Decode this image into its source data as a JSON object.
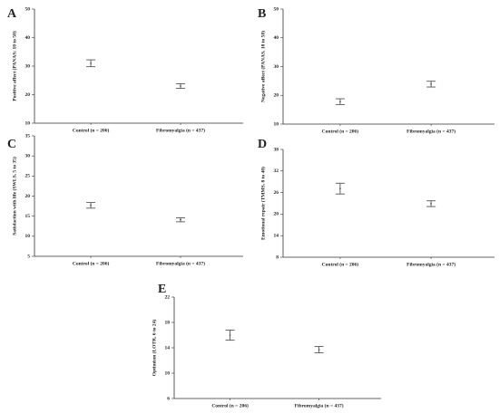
{
  "chart_data": [
    {
      "type": "errorbar",
      "label": "A",
      "ylabel": "Positive affect (PANAS; 10 to 50)",
      "categories": [
        "Control (n = 206)",
        "Fibromyalgia (n = 437)"
      ],
      "values": [
        31,
        23
      ],
      "errors": [
        1.2,
        0.8
      ],
      "ylim": [
        10,
        50
      ],
      "yticks": [
        10,
        20,
        30,
        40,
        50
      ],
      "color": "#555555"
    },
    {
      "type": "errorbar",
      "label": "B",
      "ylabel": "Negative affect (PANAS, 10 to 50)",
      "categories": [
        "Control (n = 206)",
        "Fibromyalgia (n = 437)"
      ],
      "values": [
        17.8,
        23.9
      ],
      "errors": [
        1.0,
        1.0
      ],
      "ylim": [
        10,
        50
      ],
      "yticks": [
        10,
        20,
        30,
        40,
        50
      ],
      "color": "#555555"
    },
    {
      "type": "errorbar",
      "label": "C",
      "ylabel": "Satisfaction with life (SWLS, 5 to 35)",
      "categories": [
        "Control (n = 206)",
        "Fibromyalgia (n = 437)"
      ],
      "values": [
        17.7,
        14.1
      ],
      "errors": [
        0.7,
        0.5
      ],
      "ylim": [
        5,
        35
      ],
      "yticks": [
        5,
        10,
        15,
        20,
        25,
        30,
        35
      ],
      "color": "#555555"
    },
    {
      "type": "errorbar",
      "label": "D",
      "ylabel": "Emotional repair (TMMS, 8 to 40)",
      "categories": [
        "Control (n = 206)",
        "Fibromyalgia (n = 437)"
      ],
      "values": [
        27.1,
        22.9
      ],
      "errors": [
        1.5,
        0.8
      ],
      "ylim": [
        8,
        38
      ],
      "yticks": [
        8,
        14,
        20,
        26,
        32,
        38
      ],
      "color": "#555555"
    },
    {
      "type": "errorbar",
      "label": "E",
      "ylabel": "Optimism (LOTR, 6 to 24)",
      "categories": [
        "Control (n = 206)",
        "Fibromyalgia (n = 437)"
      ],
      "values": [
        16,
        13.7
      ],
      "errors": [
        0.8,
        0.5
      ],
      "ylim": [
        6,
        22
      ],
      "yticks": [
        6,
        10,
        14,
        18,
        22
      ],
      "color": "#555555"
    }
  ]
}
